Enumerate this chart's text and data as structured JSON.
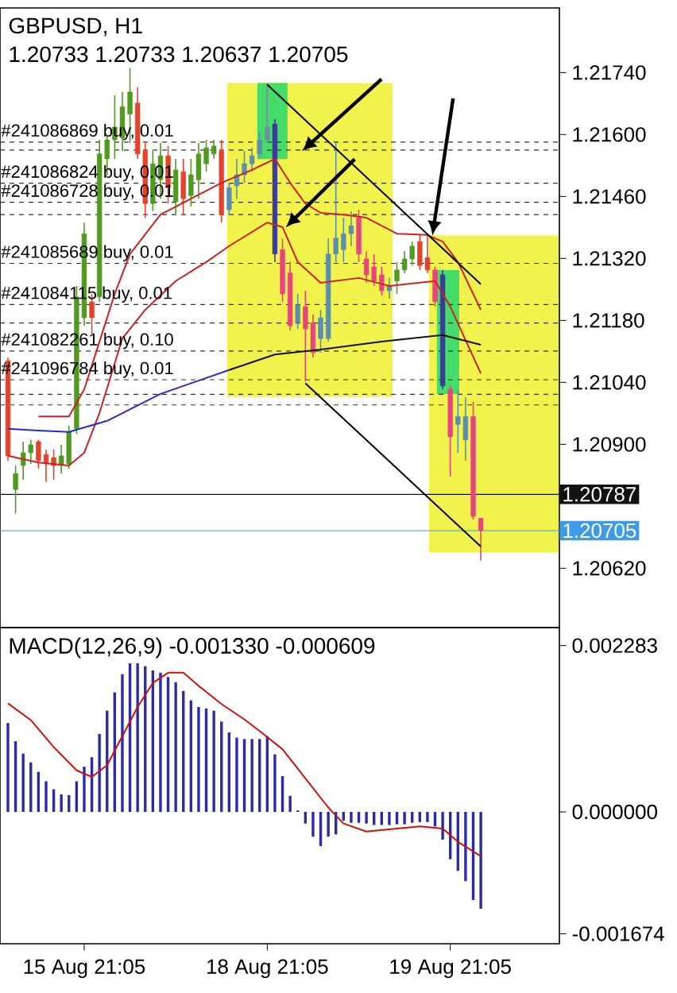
{
  "chart_data": [
    {
      "type": "candlestick",
      "title": "GBPUSD, H1",
      "subtitle": "1.20733 1.20733 1.20637 1.20705",
      "categories": [
        null,
        null,
        null,
        null,
        null,
        null,
        null,
        null,
        null,
        null,
        null,
        null,
        null,
        null,
        null,
        null,
        null,
        null,
        null,
        null,
        null,
        null,
        null,
        null,
        null,
        null,
        null,
        null,
        null,
        null,
        null,
        null,
        null,
        null,
        null,
        null,
        null,
        null,
        null,
        null,
        null,
        null,
        null,
        null,
        null,
        null,
        null,
        null,
        null,
        null,
        null,
        null,
        null,
        null,
        null,
        null,
        null,
        null,
        null,
        null,
        null,
        null,
        null
      ],
      "ohlc": [
        [
          1.21089,
          1.21096,
          1.20863,
          1.20874
        ],
        [
          1.20798,
          1.20852,
          1.20744,
          1.20834
        ],
        [
          1.20852,
          1.20906,
          1.2082,
          1.20881
        ],
        [
          1.20881,
          1.2091,
          1.20856,
          1.20899
        ],
        [
          1.20906,
          1.2091,
          1.20845,
          1.20863
        ],
        [
          1.20877,
          1.20888,
          1.20816,
          1.20856
        ],
        [
          1.2087,
          1.20888,
          1.2082,
          1.20852
        ],
        [
          1.20852,
          1.20899,
          1.20834,
          1.20874
        ],
        [
          1.20856,
          1.20942,
          1.20845,
          1.20928
        ],
        [
          1.20935,
          1.21258,
          1.20924,
          1.21233
        ],
        [
          1.21186,
          1.21401,
          1.21168,
          1.21376
        ],
        [
          1.21222,
          1.2124,
          1.2115,
          1.21186
        ],
        [
          1.21233,
          1.21588,
          1.21222,
          1.21556
        ],
        [
          1.21545,
          1.21599,
          1.21509,
          1.21588
        ],
        [
          1.21588,
          1.21689,
          1.21545,
          1.21617
        ],
        [
          1.21592,
          1.21696,
          1.21563,
          1.21663
        ],
        [
          1.21646,
          1.2175,
          1.21581,
          1.21696
        ],
        [
          1.21671,
          1.21707,
          1.21545,
          1.21556
        ],
        [
          1.21563,
          1.21581,
          1.21412,
          1.21444
        ],
        [
          1.21444,
          1.21563,
          1.21427,
          1.21534
        ],
        [
          1.21498,
          1.21581,
          1.21455,
          1.21552
        ],
        [
          1.21552,
          1.21574,
          1.21444,
          1.2148
        ],
        [
          1.21448,
          1.21545,
          1.21419,
          1.2152
        ],
        [
          1.21516,
          1.21545,
          1.21419,
          1.21455
        ],
        [
          1.21462,
          1.21545,
          1.21437,
          1.21509
        ],
        [
          1.21498,
          1.21581,
          1.21455,
          1.21556
        ],
        [
          1.21534,
          1.21588,
          1.21516,
          1.2157
        ],
        [
          1.21556,
          1.21588,
          1.21545,
          1.21574
        ],
        [
          1.21563,
          1.21588,
          1.21401,
          1.21419
        ],
        [
          1.2143,
          1.21491,
          1.21419,
          1.2148
        ],
        [
          1.21484,
          1.21545,
          1.21455,
          1.21509
        ],
        [
          1.21509,
          1.21563,
          1.21491,
          1.21534
        ],
        [
          1.21534,
          1.2157,
          1.21516,
          1.21552
        ],
        [
          1.21556,
          1.21606,
          1.21545,
          1.21588
        ],
        [
          1.21588,
          1.21717,
          1.21581,
          1.21617
        ],
        [
          1.21624,
          1.21635,
          1.21312,
          1.2133
        ],
        [
          1.2134,
          1.21365,
          1.21222,
          1.2124
        ],
        [
          1.21287,
          1.21312,
          1.21157,
          1.21168
        ],
        [
          1.21175,
          1.2124,
          1.21161,
          1.21215
        ],
        [
          1.21211,
          1.21247,
          1.21042,
          1.21161
        ],
        [
          1.21175,
          1.21193,
          1.21096,
          1.21107
        ],
        [
          1.21139,
          1.21204,
          1.21107,
          1.21186
        ],
        [
          1.21139,
          1.21366,
          1.21132,
          1.2133
        ],
        [
          1.2133,
          1.21581,
          1.21312,
          1.21366
        ],
        [
          1.2134,
          1.21412,
          1.21312,
          1.21376
        ],
        [
          1.21376,
          1.21427,
          1.21348,
          1.21394
        ],
        [
          1.21412,
          1.2143,
          1.21312,
          1.2133
        ],
        [
          1.21319,
          1.21337,
          1.21265,
          1.21283
        ],
        [
          1.21301,
          1.2133,
          1.21258,
          1.21269
        ],
        [
          1.21283,
          1.21301,
          1.21236,
          1.21247
        ],
        [
          1.21247,
          1.21276,
          1.21229,
          1.21258
        ],
        [
          1.21269,
          1.21312,
          1.2124,
          1.21294
        ],
        [
          1.21294,
          1.21337,
          1.21287,
          1.21319
        ],
        [
          1.21319,
          1.21358,
          1.21304,
          1.21348
        ],
        [
          1.21358,
          1.21373,
          1.21294,
          1.21304
        ],
        [
          1.21322,
          1.21373,
          1.21287,
          1.21294
        ],
        [
          1.21294,
          1.21301,
          1.21211,
          1.21222
        ],
        [
          1.21283,
          1.21294,
          1.21024,
          1.21032
        ],
        [
          1.21024,
          1.21032,
          1.20827,
          1.20917
        ],
        [
          1.20945,
          1.21024,
          1.20881,
          1.20963
        ],
        [
          1.2091,
          1.21006,
          1.20863,
          1.20963
        ],
        [
          1.20963,
          1.20996,
          1.2073,
          1.20737
        ],
        [
          1.20733,
          1.20733,
          1.20637,
          1.20705
        ]
      ],
      "colors": [
        "#e4432b",
        "#4f9a1f",
        "#4f9a1f",
        "#4f9a1f",
        "#e4432b",
        "#e4432b",
        "#e4432b",
        "#4f9a1f",
        "#4f9a1f",
        "#4f9a1f",
        "#4f9a1f",
        "#e4432b",
        "#4f9a1f",
        "#4f9a1f",
        "#4f9a1f",
        "#4f9a1f",
        "#4f9a1f",
        "#e4432b",
        "#e4432b",
        "#4f9a1f",
        "#4f9a1f",
        "#e4432b",
        "#4f9a1f",
        "#e4432b",
        "#4f9a1f",
        "#4f9a1f",
        "#4f9a1f",
        "#4f9a1f",
        "#e4432b",
        "#5a8fae",
        "#5a8fae",
        "#5a8fae",
        "#5a8fae",
        "#5a8fae",
        "#6e8fa0",
        "#3b3b99",
        "#e8457f",
        "#e8457f",
        "#5a8fae",
        "#e8457f",
        "#e8457f",
        "#5a8fae",
        "#5a8fae",
        "#5a8fae",
        "#5a8fae",
        "#5a8fae",
        "#e8457f",
        "#e8457f",
        "#e8457f",
        "#e8457f",
        "#5a8fae",
        "#4f9a1f",
        "#4f9a1f",
        "#4f9a1f",
        "#e4432b",
        "#e4432b",
        "#e8457f",
        "#3b3b99",
        "#e8457f",
        "#5a8fae",
        "#5a8fae",
        "#e8457f",
        "#e8457f"
      ],
      "series": [
        {
          "type": "line",
          "color": "#cc2222",
          "values": [
            null,
            null,
            null,
            null,
            1.20963,
            null,
            null,
            null,
            1.20963,
            null,
            1.21024,
            null,
            1.21132,
            null,
            1.2124,
            null,
            1.2133,
            null,
            null,
            null,
            1.21419,
            null,
            null,
            null,
            1.21455,
            null,
            null,
            null,
            1.21491,
            null,
            null,
            null,
            1.2152,
            null,
            null,
            1.21545,
            null,
            1.21491,
            null,
            1.21444,
            null,
            1.21423,
            null,
            null,
            1.21419,
            null,
            null,
            1.21412,
            null,
            null,
            null,
            1.21376,
            null,
            null,
            null,
            1.21373,
            null,
            1.21358,
            null,
            1.21312,
            null,
            null,
            1.21204
          ]
        },
        {
          "type": "line",
          "color": "#cc2222",
          "values": [
            1.20874,
            null,
            null,
            null,
            1.20859,
            null,
            null,
            null,
            1.20852,
            null,
            1.20881,
            null,
            1.20971,
            null,
            null,
            1.21139,
            null,
            null,
            1.21204,
            null,
            null,
            null,
            1.21269,
            null,
            null,
            null,
            1.21312,
            null,
            null,
            1.21348,
            null,
            null,
            null,
            null,
            1.21401,
            null,
            1.21391,
            null,
            1.21312,
            null,
            null,
            1.21265,
            null,
            null,
            null,
            null,
            1.21276,
            null,
            null,
            null,
            1.21258,
            null,
            null,
            null,
            null,
            null,
            1.21269,
            null,
            1.21211,
            null,
            null,
            null,
            1.2106
          ]
        },
        {
          "type": "line",
          "color": "#2a2acc",
          "values": [
            1.20935,
            null,
            null,
            null,
            1.20931,
            null,
            null,
            null,
            1.20928,
            null,
            null,
            null,
            null,
            1.20953,
            null,
            null,
            null,
            null,
            null,
            null,
            1.21014,
            null,
            null,
            null,
            null,
            null,
            null,
            null,
            null,
            1.21068,
            null,
            null,
            null,
            null,
            null,
            null,
            null,
            null,
            null,
            null,
            null,
            null,
            null,
            null,
            null,
            null,
            null,
            null,
            null,
            null,
            null,
            null,
            null,
            null,
            null,
            null,
            null,
            null,
            null,
            null,
            null,
            null,
            null
          ]
        },
        {
          "type": "line",
          "color": "#111111",
          "values": [
            null,
            null,
            null,
            null,
            null,
            null,
            null,
            null,
            null,
            null,
            null,
            null,
            null,
            null,
            null,
            null,
            null,
            null,
            null,
            null,
            null,
            null,
            null,
            null,
            null,
            null,
            null,
            null,
            null,
            1.21068,
            null,
            null,
            null,
            null,
            null,
            1.21103,
            null,
            null,
            null,
            null,
            null,
            1.21114,
            null,
            null,
            null,
            null,
            null,
            null,
            null,
            1.21132,
            null,
            null,
            null,
            null,
            null,
            null,
            null,
            1.21147,
            null,
            null,
            null,
            null,
            1.21125
          ]
        },
        {
          "type": "line",
          "color": "#000000",
          "values": [
            null,
            null,
            null,
            null,
            null,
            null,
            null,
            null,
            null,
            null,
            null,
            null,
            null,
            null,
            null,
            null,
            null,
            null,
            null,
            null,
            null,
            null,
            null,
            null,
            null,
            null,
            null,
            null,
            null,
            null,
            null,
            null,
            null,
            null,
            1.21713,
            null,
            null,
            null,
            null,
            null,
            null,
            null,
            null,
            null,
            null,
            null,
            null,
            null,
            null,
            null,
            null,
            null,
            null,
            null,
            null,
            null,
            null,
            null,
            null,
            null,
            null,
            null,
            1.21262
          ]
        },
        {
          "type": "line",
          "color": "#000000",
          "values": [
            null,
            null,
            null,
            null,
            null,
            null,
            null,
            null,
            null,
            null,
            null,
            null,
            null,
            null,
            null,
            null,
            null,
            null,
            null,
            null,
            null,
            null,
            null,
            null,
            null,
            null,
            null,
            null,
            null,
            null,
            null,
            null,
            null,
            null,
            null,
            null,
            null,
            null,
            null,
            1.21038,
            null,
            null,
            null,
            null,
            null,
            null,
            null,
            null,
            null,
            null,
            null,
            null,
            null,
            null,
            null,
            null,
            null,
            null,
            null,
            null,
            null,
            null,
            1.20669
          ]
        }
      ],
      "ylim": [
        1.20486,
        1.21886
      ],
      "yticks": [
        {
          "value": 1.2174,
          "label": "1.21740"
        },
        {
          "value": 1.216,
          "label": "1.21600"
        },
        {
          "value": 1.2146,
          "label": "1.21460"
        },
        {
          "value": 1.2132,
          "label": "1.21320"
        },
        {
          "value": 1.2118,
          "label": "1.21180"
        },
        {
          "value": 1.2104,
          "label": "1.21040"
        },
        {
          "value": 1.209,
          "label": "1.20900"
        },
        {
          "value": 1.2062,
          "label": "1.20620"
        }
      ],
      "tick_labels": "y",
      "ref_lines": [
        {
          "axis": "y",
          "value": 1.21583,
          "label": "#241086869 buy, 0.01",
          "color": "#333333",
          "line_style": "dashed"
        },
        {
          "axis": "y",
          "value": 1.21565,
          "color": "#333333",
          "line_style": "dashed"
        },
        {
          "axis": "y",
          "value": 1.2149,
          "label": "#241086824 buy, 0.01",
          "color": "#333333",
          "line_style": "dashed"
        },
        {
          "axis": "y",
          "value": 1.21447,
          "label": "#241086728 buy, 0.01",
          "color": "#333333",
          "line_style": "dashed"
        },
        {
          "axis": "y",
          "value": 1.21419,
          "color": "#333333",
          "line_style": "dashed"
        },
        {
          "axis": "y",
          "value": 1.21309,
          "label": "#241085689 buy, 0.01",
          "color": "#333333",
          "line_style": "dashed"
        },
        {
          "axis": "y",
          "value": 1.21216,
          "label": "#241084115 buy, 0.01",
          "color": "#333333",
          "line_style": "dashed"
        },
        {
          "axis": "y",
          "value": 1.21174,
          "color": "#333333",
          "line_style": "dashed"
        },
        {
          "axis": "y",
          "value": 1.21111,
          "label": "#241082261 buy, 0.10",
          "color": "#333333",
          "line_style": "dashed"
        },
        {
          "axis": "y",
          "value": 1.21046,
          "label": "#241096784 buy, 0.01",
          "color": "#333333",
          "line_style": "dashed"
        },
        {
          "axis": "y",
          "value": 1.21013,
          "color": "#333333",
          "line_style": "dashed"
        },
        {
          "axis": "y",
          "value": 1.20989,
          "color": "#333333",
          "line_style": "dashed"
        },
        {
          "axis": "y",
          "value": 1.20787,
          "label": "1.20787",
          "color": "#111111",
          "line_style": "solid"
        },
        {
          "axis": "y",
          "value": 1.20705,
          "label": "1.20705",
          "color": "#3d9be9",
          "line_style": "solid"
        }
      ]
    },
    {
      "type": "bar",
      "title": "MACD(12,26,9) -0.001330 -0.000609",
      "categories": [
        null,
        null,
        null,
        null,
        null,
        null,
        null,
        null,
        null,
        null,
        "15 Aug 21:05",
        null,
        null,
        null,
        null,
        null,
        null,
        null,
        null,
        null,
        null,
        null,
        null,
        null,
        null,
        null,
        null,
        null,
        null,
        null,
        null,
        null,
        null,
        null,
        "18 Aug 21:05",
        null,
        null,
        null,
        null,
        null,
        null,
        null,
        null,
        null,
        null,
        null,
        null,
        null,
        null,
        null,
        null,
        null,
        null,
        null,
        null,
        null,
        null,
        null,
        "19 Aug 21:05",
        null,
        null,
        null,
        null
      ],
      "series": [
        {
          "type": "bar",
          "color": "#2b2ba8",
          "values": [
            0.00122,
            0.00097,
            0.0008,
            0.00068,
            0.00055,
            0.00042,
            0.00031,
            0.00024,
            0.00023,
            0.00042,
            0.00062,
            0.00075,
            0.00107,
            0.00139,
            0.00164,
            0.00189,
            0.00204,
            0.00204,
            0.002,
            0.00194,
            0.00191,
            0.00185,
            0.00178,
            0.00166,
            0.00153,
            0.00144,
            0.00142,
            0.00139,
            0.00124,
            0.00109,
            0.00102,
            0.001,
            0.001,
            0.001,
            0.00104,
            0.00079,
            0.00049,
            0.00022,
            2e-05,
            -0.00016,
            -0.00034,
            -0.00047,
            -0.00034,
            -0.00031,
            -0.00012,
            -0.00015,
            -0.00015,
            -0.00016,
            -0.00018,
            -0.00018,
            -0.00018,
            -0.00017,
            -0.00017,
            -0.00015,
            -0.00014,
            -0.00014,
            -0.0002,
            -0.00038,
            -0.00065,
            -0.00081,
            -0.00095,
            -0.00121,
            -0.00133
          ]
        },
        {
          "type": "line",
          "color": "#cc1111",
          "values": [
            0.00149,
            null,
            null,
            0.00126,
            null,
            null,
            0.00089,
            null,
            null,
            0.00057,
            null,
            0.00048,
            null,
            0.00064,
            null,
            0.00104,
            null,
            0.00144,
            null,
            0.00177,
            null,
            0.00191,
            null,
            0.00191,
            null,
            0.00173,
            null,
            null,
            0.00148,
            null,
            null,
            0.00127,
            null,
            0.00111,
            null,
            null,
            0.00086,
            null,
            null,
            0.00046,
            null,
            null,
            6e-05,
            null,
            -0.00016,
            null,
            null,
            -0.00027,
            null,
            null,
            null,
            -0.00023,
            null,
            null,
            -0.0002,
            null,
            null,
            -0.00023,
            null,
            -0.00041,
            null,
            null,
            -0.000609
          ]
        }
      ],
      "ylim": [
        -0.00181,
        0.00253
      ],
      "yticks": [
        0.002283,
        {
          "value": 0,
          "label": "0.000000"
        },
        -0.001674
      ]
    }
  ]
}
